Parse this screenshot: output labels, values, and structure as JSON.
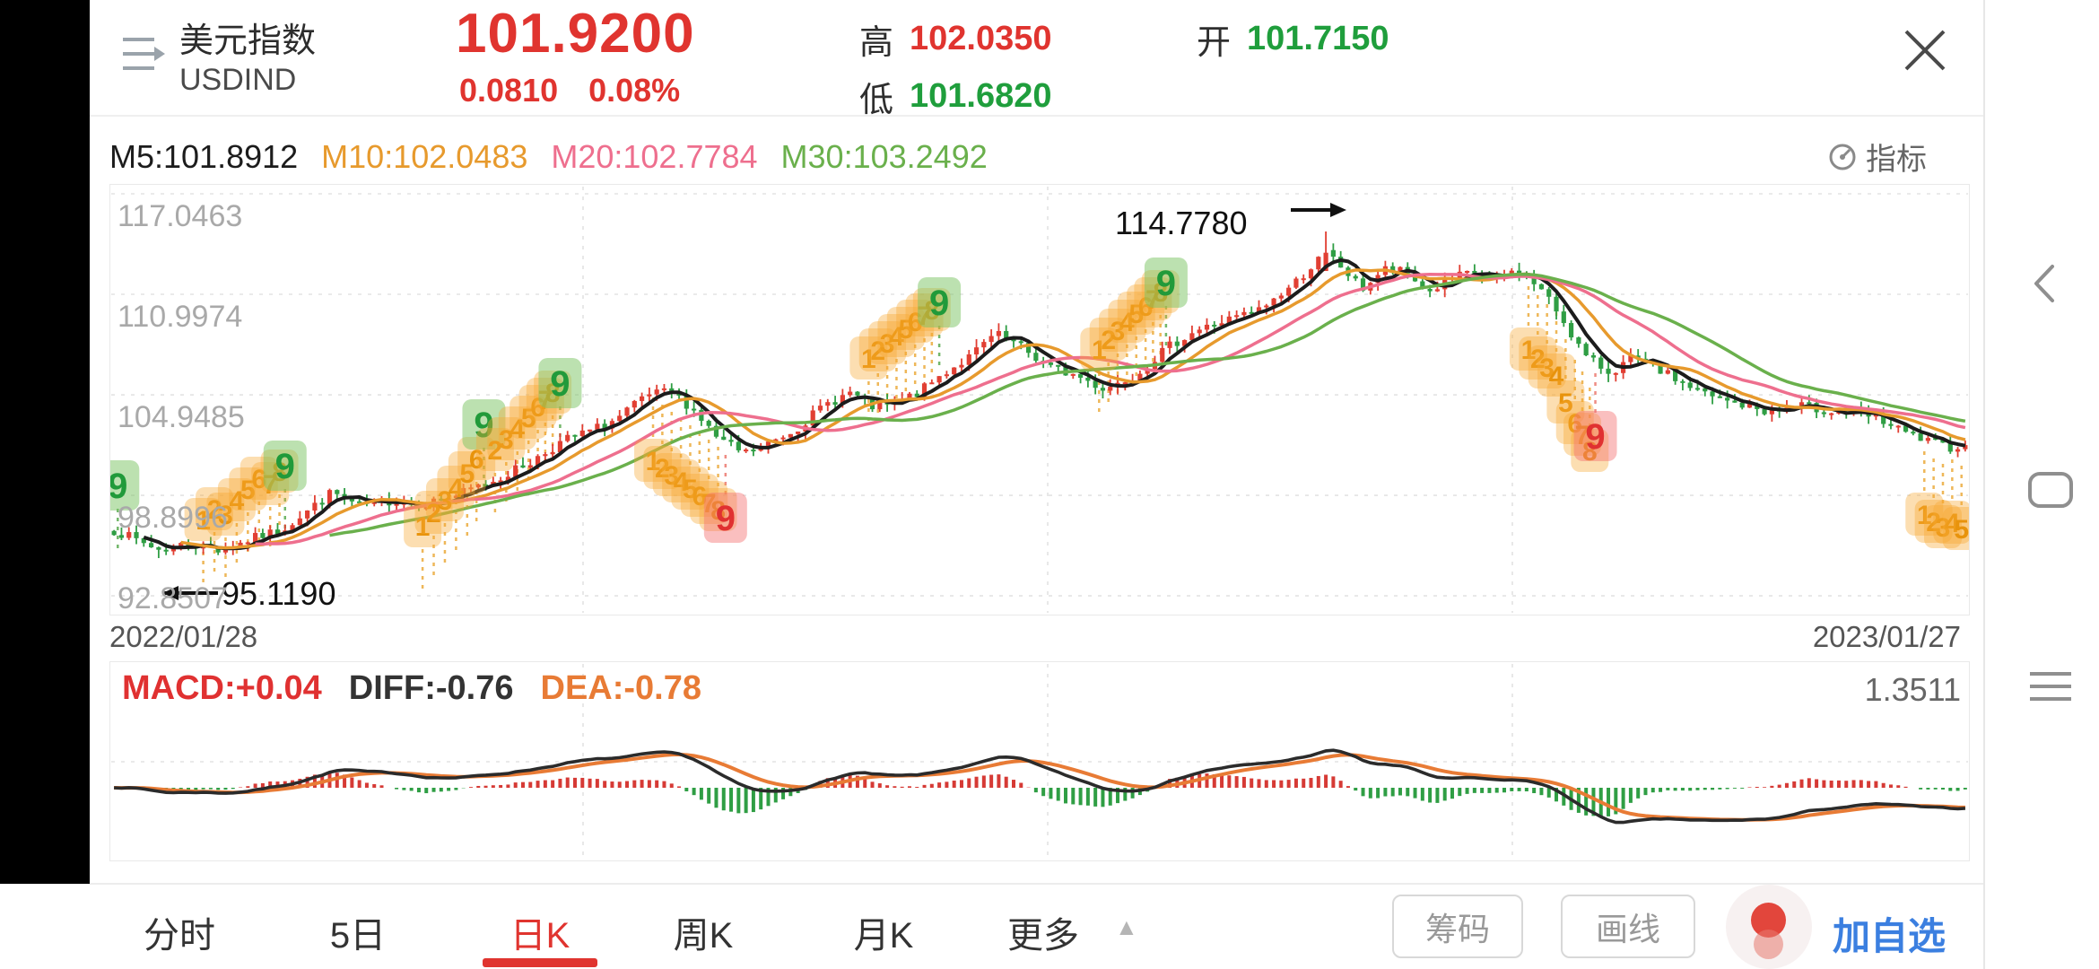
{
  "header": {
    "title": "美元指数",
    "code": "USDIND",
    "last_price": "101.9200",
    "change": "0.0810",
    "change_pct": "0.08%",
    "price_color": "#e0342f",
    "stats": [
      {
        "label": "高",
        "value": "102.0350",
        "color": "#e0342f"
      },
      {
        "label": "低",
        "value": "101.6820",
        "color": "#1f9e3c"
      },
      {
        "label": "开",
        "value": "101.7150",
        "color": "#1f9e3c"
      }
    ]
  },
  "ma_bar": {
    "items": [
      {
        "label": "M5:101.8912",
        "color": "#1c1c1c"
      },
      {
        "label": "M10:102.0483",
        "color": "#e79a2d"
      },
      {
        "label": "M20:102.7784",
        "color": "#ee6f8e"
      },
      {
        "label": "M30:103.2492",
        "color": "#6ab04c"
      }
    ],
    "indicator_label": "指标"
  },
  "chart_data": {
    "type": "candlestick",
    "title": "USDIND 美元指数 日K",
    "x_range": [
      "2022/01/28",
      "2023/01/27"
    ],
    "y_axis_labels": [
      "117.0463",
      "110.9974",
      "104.9485",
      "98.8996",
      "92.8507"
    ],
    "y_gridline_values": [
      117.0463,
      110.9974,
      104.9485,
      98.8996,
      92.8507
    ],
    "annotations": {
      "low": {
        "text": "95.1190",
        "value": 95.119,
        "t": 0.025
      },
      "high": {
        "text": "114.7780",
        "value": 114.778,
        "t": 0.655
      }
    },
    "num_candles": 250,
    "noise_seed": 7,
    "noise_amp": 0.6,
    "ma_periods": [
      5,
      10,
      20,
      30
    ],
    "colors": {
      "up": "#e13f33",
      "down": "#2f9e44",
      "m5": "#1c1c1c",
      "m10": "#e79a2d",
      "m20": "#ee6f8e",
      "m30": "#6ab04c",
      "grid": "#e3e3e3",
      "badge_orange_bg": "rgba(247,168,50,0.38)",
      "badge_orange_fg": "#e8930c",
      "badge_green_bg": "rgba(121,196,98,0.50)",
      "badge_green_fg": "#219a3a",
      "badge_pink_bg": "rgba(244,112,112,0.45)",
      "badge_pink_fg": "#e03131"
    },
    "trend": [
      [
        0.0,
        96.8
      ],
      [
        0.012,
        96.2
      ],
      [
        0.025,
        95.6
      ],
      [
        0.04,
        96.0
      ],
      [
        0.058,
        95.6
      ],
      [
        0.075,
        96.3
      ],
      [
        0.09,
        96.8
      ],
      [
        0.105,
        98.0
      ],
      [
        0.118,
        99.1
      ],
      [
        0.132,
        98.2
      ],
      [
        0.15,
        98.6
      ],
      [
        0.168,
        98.4
      ],
      [
        0.185,
        98.9
      ],
      [
        0.205,
        99.8
      ],
      [
        0.225,
        100.9
      ],
      [
        0.243,
        102.2
      ],
      [
        0.258,
        102.8
      ],
      [
        0.272,
        103.5
      ],
      [
        0.288,
        104.9
      ],
      [
        0.3,
        105.1
      ],
      [
        0.312,
        104.2
      ],
      [
        0.326,
        102.3
      ],
      [
        0.34,
        101.4
      ],
      [
        0.352,
        101.9
      ],
      [
        0.368,
        102.9
      ],
      [
        0.385,
        104.4
      ],
      [
        0.398,
        105.1
      ],
      [
        0.408,
        104.2
      ],
      [
        0.42,
        104.3
      ],
      [
        0.435,
        105.1
      ],
      [
        0.45,
        106.4
      ],
      [
        0.462,
        107.2
      ],
      [
        0.476,
        108.6
      ],
      [
        0.49,
        107.8
      ],
      [
        0.505,
        106.6
      ],
      [
        0.52,
        106.1
      ],
      [
        0.535,
        105.3
      ],
      [
        0.552,
        106.2
      ],
      [
        0.568,
        107.7
      ],
      [
        0.582,
        108.7
      ],
      [
        0.6,
        109.4
      ],
      [
        0.618,
        110.0
      ],
      [
        0.636,
        111.5
      ],
      [
        0.648,
        112.8
      ],
      [
        0.655,
        113.5
      ],
      [
        0.664,
        112.5
      ],
      [
        0.674,
        111.3
      ],
      [
        0.686,
        112.5
      ],
      [
        0.698,
        112.3
      ],
      [
        0.71,
        111.1
      ],
      [
        0.722,
        111.9
      ],
      [
        0.734,
        112.3
      ],
      [
        0.746,
        111.8
      ],
      [
        0.758,
        112.5
      ],
      [
        0.77,
        111.4
      ],
      [
        0.782,
        109.6
      ],
      [
        0.795,
        107.2
      ],
      [
        0.808,
        106.3
      ],
      [
        0.82,
        107.1
      ],
      [
        0.835,
        106.4
      ],
      [
        0.85,
        105.5
      ],
      [
        0.865,
        104.7
      ],
      [
        0.88,
        104.3
      ],
      [
        0.895,
        103.9
      ],
      [
        0.91,
        104.3
      ],
      [
        0.925,
        104.0
      ],
      [
        0.94,
        103.8
      ],
      [
        0.953,
        103.5
      ],
      [
        0.966,
        102.7
      ],
      [
        0.98,
        102.1
      ],
      [
        0.99,
        101.8
      ],
      [
        1.0,
        101.92
      ]
    ],
    "badges": [
      [
        0.004,
        540,
        "9",
        "g",
        1
      ],
      [
        0.05,
        578,
        "1",
        "o",
        1
      ],
      [
        0.056,
        566,
        "2",
        "o",
        1
      ],
      [
        0.062,
        572,
        "3",
        "o",
        1
      ],
      [
        0.068,
        556,
        "4",
        "o",
        1
      ],
      [
        0.074,
        544,
        "5",
        "o",
        1
      ],
      [
        0.08,
        532,
        "6",
        "o",
        1
      ],
      [
        0.086,
        538,
        "7",
        "o",
        1
      ],
      [
        0.091,
        524,
        "8",
        "o",
        1
      ],
      [
        0.094,
        518,
        "9",
        "g",
        1
      ],
      [
        0.168,
        585,
        "1",
        "o",
        1
      ],
      [
        0.174,
        570,
        "2",
        "o",
        1
      ],
      [
        0.18,
        556,
        "3",
        "o",
        1
      ],
      [
        0.186,
        542,
        "4",
        "o",
        1
      ],
      [
        0.192,
        526,
        "5",
        "o",
        1
      ],
      [
        0.197,
        510,
        "6",
        "o",
        1
      ],
      [
        0.201,
        472,
        "9",
        "g",
        1
      ],
      [
        0.207,
        500,
        "2",
        "o",
        1
      ],
      [
        0.213,
        488,
        "3",
        "o",
        1
      ],
      [
        0.219,
        476,
        "4",
        "o",
        1
      ],
      [
        0.225,
        464,
        "5",
        "o",
        1
      ],
      [
        0.23,
        452,
        "6",
        "o",
        1
      ],
      [
        0.234,
        444,
        "7",
        "o",
        1
      ],
      [
        0.238,
        436,
        "8",
        "o",
        1
      ],
      [
        0.242,
        426,
        "9",
        "g",
        1
      ],
      [
        0.292,
        512,
        "1",
        "o",
        -1
      ],
      [
        0.297,
        520,
        "2",
        "o",
        -1
      ],
      [
        0.302,
        528,
        "3",
        "o",
        -1
      ],
      [
        0.307,
        535,
        "4",
        "o",
        -1
      ],
      [
        0.312,
        543,
        "5",
        "o",
        -1
      ],
      [
        0.317,
        551,
        "6",
        "o",
        -1
      ],
      [
        0.322,
        559,
        "7",
        "o",
        -1
      ],
      [
        0.327,
        567,
        "8",
        "o",
        -1
      ],
      [
        0.331,
        576,
        "9",
        "p",
        -1
      ],
      [
        0.408,
        398,
        "1",
        "o",
        1
      ],
      [
        0.413,
        389,
        "2",
        "o",
        1
      ],
      [
        0.418,
        381,
        "3",
        "o",
        1
      ],
      [
        0.423,
        373,
        "4",
        "o",
        1
      ],
      [
        0.428,
        365,
        "5",
        "o",
        1
      ],
      [
        0.433,
        357,
        "6",
        "o",
        1
      ],
      [
        0.438,
        350,
        "7",
        "o",
        1
      ],
      [
        0.442,
        344,
        "8",
        "o",
        1
      ],
      [
        0.446,
        336,
        "9",
        "g",
        1
      ],
      [
        0.532,
        388,
        "1",
        "o",
        1
      ],
      [
        0.537,
        377,
        "2",
        "o",
        1
      ],
      [
        0.542,
        367,
        "3",
        "o",
        1
      ],
      [
        0.547,
        357,
        "4",
        "o",
        1
      ],
      [
        0.552,
        348,
        "5",
        "o",
        1
      ],
      [
        0.557,
        340,
        "6",
        "o",
        1
      ],
      [
        0.561,
        332,
        "7",
        "o",
        1
      ],
      [
        0.565,
        324,
        "8",
        "o",
        1
      ],
      [
        0.568,
        314,
        "9",
        "g",
        1
      ],
      [
        0.763,
        388,
        "1",
        "o",
        -1
      ],
      [
        0.768,
        398,
        "2",
        "o",
        -1
      ],
      [
        0.773,
        408,
        "3",
        "o",
        -1
      ],
      [
        0.778,
        417,
        "4",
        "o",
        -1
      ],
      [
        0.783,
        447,
        "5",
        "o",
        -1
      ],
      [
        0.788,
        470,
        "6",
        "o",
        -1
      ],
      [
        0.792,
        483,
        "7",
        "o",
        -1
      ],
      [
        0.796,
        501,
        "8",
        "o",
        -1
      ],
      [
        0.799,
        485,
        "9",
        "p",
        -1
      ],
      [
        0.976,
        572,
        "1",
        "o",
        -1
      ],
      [
        0.981,
        580,
        "2",
        "o",
        -1
      ],
      [
        0.986,
        586,
        "3",
        "o",
        -1
      ],
      [
        0.991,
        581,
        "4",
        "o",
        -1
      ],
      [
        0.996,
        588,
        "5",
        "o",
        -1
      ]
    ],
    "macd": {
      "labels": [
        {
          "text": "MACD:+0.04",
          "color": "#e03131"
        },
        {
          "text": "DIFF:-0.76",
          "color": "#333333"
        },
        {
          "text": "DEA:-0.78",
          "color": "#e87b35"
        }
      ],
      "right_value": "1.3511",
      "values": {
        "macd": 0.04,
        "diff": -0.76,
        "dea": -0.78
      },
      "diff_color": "#2b2b2b",
      "dea_color": "#e87b35",
      "hist_up": "#d63a35",
      "hist_down": "#2f9e44"
    }
  },
  "dates": {
    "start": "2022/01/28",
    "end": "2023/01/27"
  },
  "tabs": {
    "items": [
      "分时",
      "5日",
      "日K",
      "周K",
      "月K",
      "更多"
    ],
    "active_index": 2,
    "more_arrow": "▲"
  },
  "actions": {
    "chips": "筹码",
    "draw": "画线",
    "add_watchlist": "加自选"
  }
}
